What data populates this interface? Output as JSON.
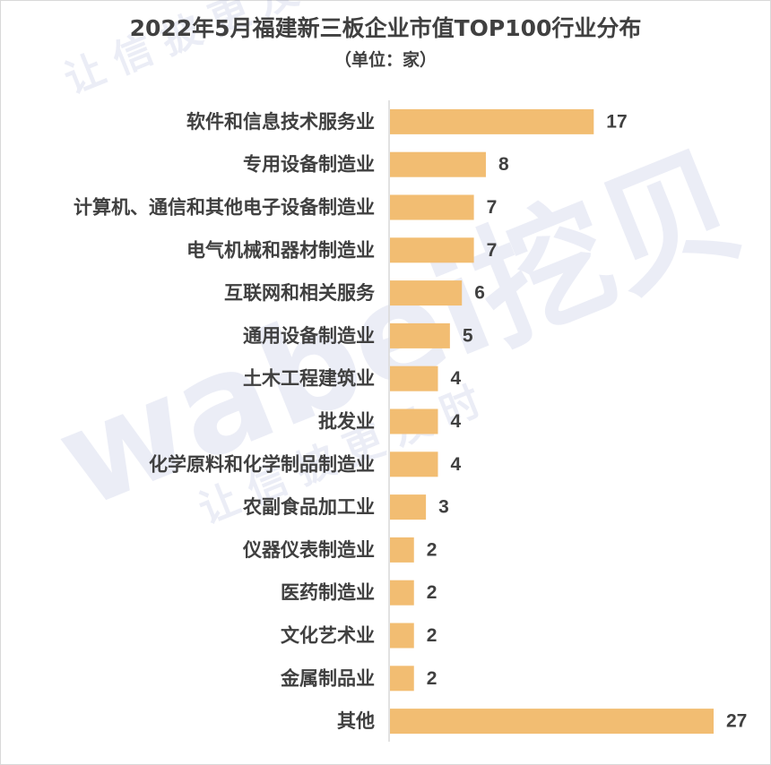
{
  "chart_data": {
    "type": "bar",
    "orientation": "horizontal",
    "title": "2022年5月福建新三板企业市值TOP100行业分布",
    "subtitle": "（单位：家）",
    "categories": [
      "软件和信息技术服务业",
      "专用设备制造业",
      "计算机、通信和其他电子设备制造业",
      "电气机械和器材制造业",
      "互联网和相关服务",
      "通用设备制造业",
      "土木工程建筑业",
      "批发业",
      "化学原料和化学制品制造业",
      "农副食品加工业",
      "仪器仪表制造业",
      "医药制造业",
      "文化艺术业",
      "金属制品业",
      "其他"
    ],
    "values": [
      17,
      8,
      7,
      7,
      6,
      5,
      4,
      4,
      4,
      3,
      2,
      2,
      2,
      2,
      27
    ],
    "xlim": [
      0,
      27
    ],
    "bar_color": "#f2bd72",
    "label_color": "#404040",
    "grid": false,
    "legend": "none"
  },
  "watermark": {
    "brand": "wabei挖贝",
    "slogan": "让信披更及时"
  }
}
